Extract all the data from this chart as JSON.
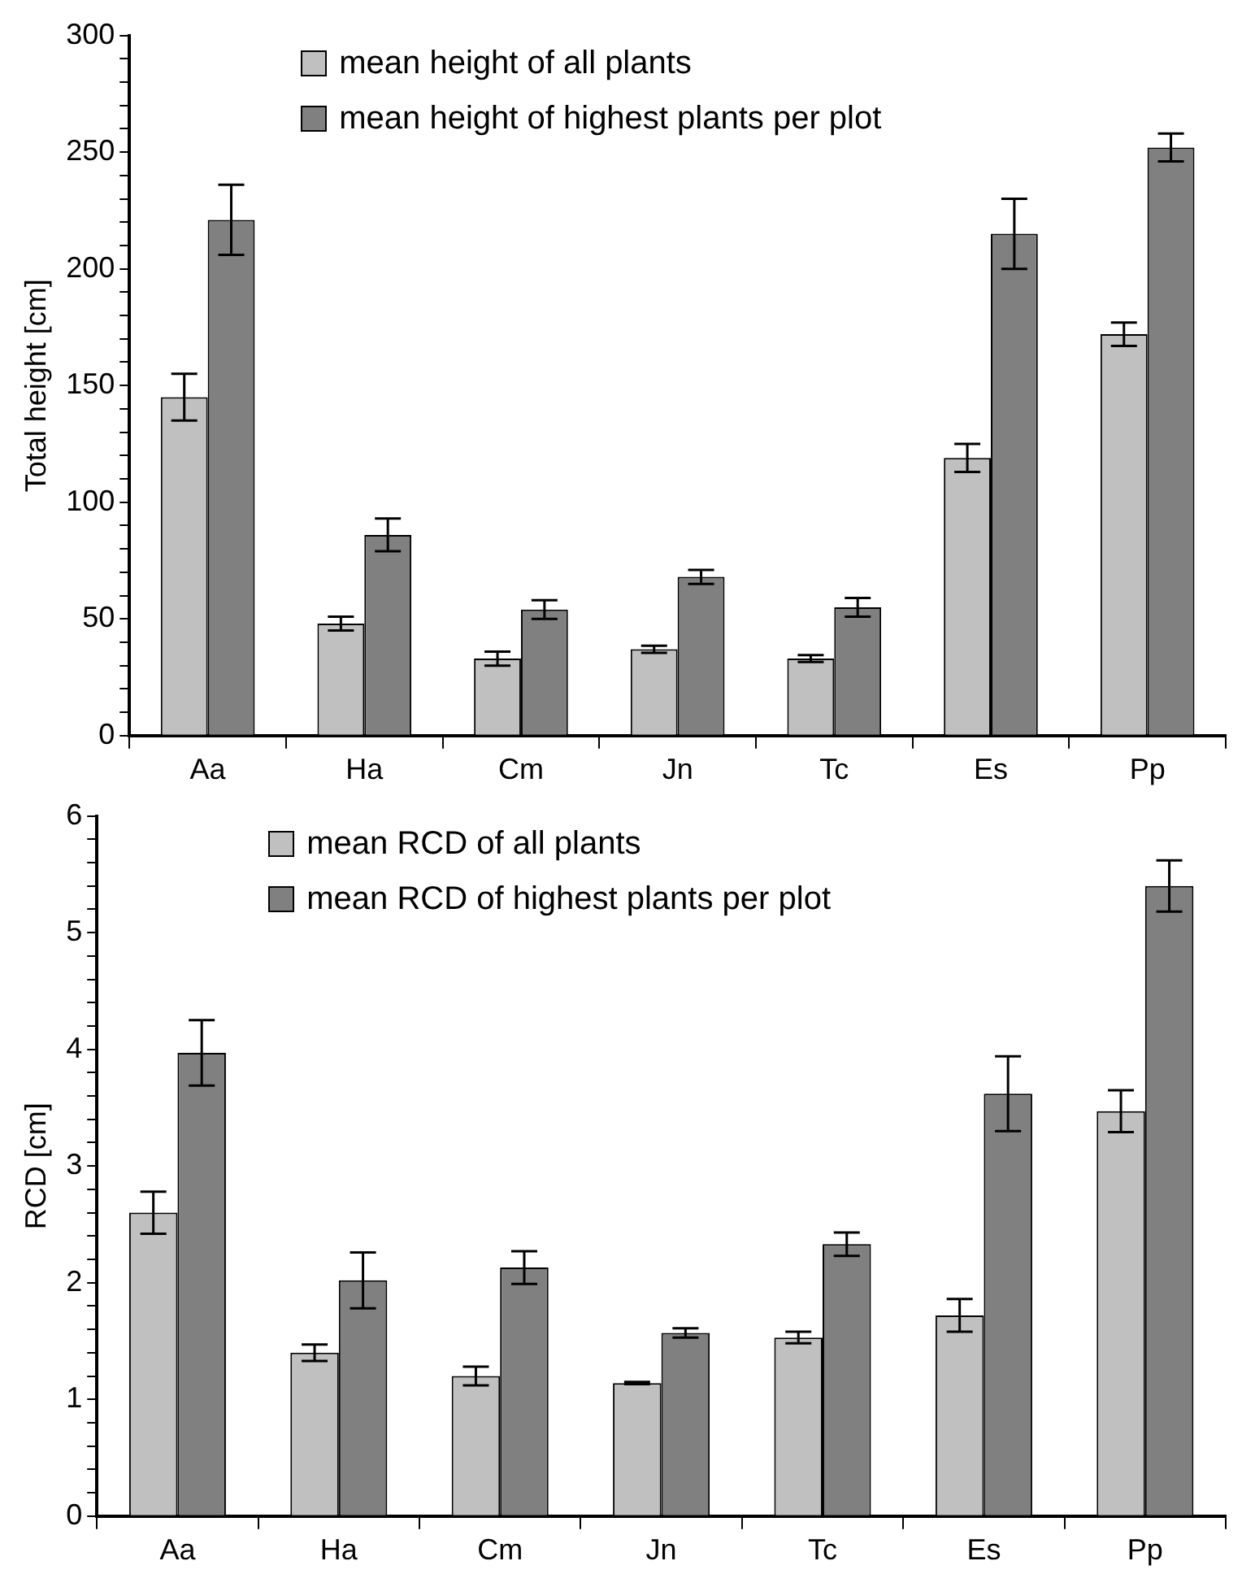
{
  "chart_data": [
    {
      "type": "bar",
      "ylabel": "Total height [cm]",
      "categories": [
        "Aa",
        "Ha",
        "Cm",
        "Jn",
        "Tc",
        "Es",
        "Pp"
      ],
      "series": [
        {
          "name": "mean height of all plants",
          "color": "#c0c0c0",
          "values": [
            145,
            48,
            33,
            37,
            33,
            119,
            172
          ],
          "errors": [
            10,
            3,
            3,
            1.5,
            1.5,
            6,
            5
          ]
        },
        {
          "name": "mean height of highest plants per plot",
          "color": "#808080",
          "values": [
            221,
            86,
            54,
            68,
            55,
            215,
            252
          ],
          "errors": [
            15,
            7,
            4,
            3,
            4,
            15,
            6
          ]
        }
      ],
      "ylim": [
        0,
        300
      ],
      "yticks": [
        0,
        {
          "value": 10,
          "label": null
        },
        {
          "value": 20,
          "label": null
        },
        {
          "value": 30,
          "label": null
        },
        {
          "value": 40,
          "label": null
        },
        50,
        {
          "value": 60,
          "label": null
        },
        {
          "value": 70,
          "label": null
        },
        {
          "value": 80,
          "label": null
        },
        {
          "value": 90,
          "label": null
        },
        100,
        {
          "value": 110,
          "label": null
        },
        {
          "value": 120,
          "label": null
        },
        {
          "value": 130,
          "label": null
        },
        {
          "value": 140,
          "label": null
        },
        150,
        {
          "value": 160,
          "label": null
        },
        {
          "value": 170,
          "label": null
        },
        {
          "value": 180,
          "label": null
        },
        {
          "value": 190,
          "label": null
        },
        200,
        {
          "value": 210,
          "label": null
        },
        {
          "value": 220,
          "label": null
        },
        {
          "value": 230,
          "label": null
        },
        {
          "value": 240,
          "label": null
        },
        250,
        {
          "value": 260,
          "label": null
        },
        {
          "value": 270,
          "label": null
        },
        {
          "value": 280,
          "label": null
        },
        {
          "value": 290,
          "label": null
        },
        300
      ],
      "grid": false,
      "legend": "top left"
    },
    {
      "type": "bar",
      "ylabel": "RCD [cm]",
      "categories": [
        "Aa",
        "Ha",
        "Cm",
        "Jn",
        "Tc",
        "Es",
        "Pp"
      ],
      "series": [
        {
          "name": "mean RCD of all plants",
          "color": "#c0c0c0",
          "values": [
            2.6,
            1.4,
            1.2,
            1.14,
            1.53,
            1.72,
            3.47
          ],
          "errors": [
            0.18,
            0.07,
            0.08,
            0.01,
            0.05,
            0.14,
            0.18
          ]
        },
        {
          "name": "mean RCD of highest plants per plot",
          "color": "#808080",
          "values": [
            3.97,
            2.02,
            2.13,
            1.57,
            2.33,
            3.62,
            5.4
          ],
          "errors": [
            0.28,
            0.24,
            0.14,
            0.04,
            0.1,
            0.32,
            0.22
          ]
        }
      ],
      "ylim": [
        0,
        6
      ],
      "yticks": [
        0,
        {
          "value": 0.2,
          "label": null
        },
        {
          "value": 0.4,
          "label": null
        },
        {
          "value": 0.6,
          "label": null
        },
        {
          "value": 0.8,
          "label": null
        },
        1,
        {
          "value": 1.2,
          "label": null
        },
        {
          "value": 1.4,
          "label": null
        },
        {
          "value": 1.6,
          "label": null
        },
        {
          "value": 1.8,
          "label": null
        },
        2,
        {
          "value": 2.2,
          "label": null
        },
        {
          "value": 2.4,
          "label": null
        },
        {
          "value": 2.6,
          "label": null
        },
        {
          "value": 2.8,
          "label": null
        },
        3,
        {
          "value": 3.2,
          "label": null
        },
        {
          "value": 3.4,
          "label": null
        },
        {
          "value": 3.6,
          "label": null
        },
        {
          "value": 3.8,
          "label": null
        },
        4,
        {
          "value": 4.2,
          "label": null
        },
        {
          "value": 4.4,
          "label": null
        },
        {
          "value": 4.6,
          "label": null
        },
        {
          "value": 4.8,
          "label": null
        },
        5,
        {
          "value": 5.2,
          "label": null
        },
        {
          "value": 5.4,
          "label": null
        },
        {
          "value": 5.6,
          "label": null
        },
        {
          "value": 5.8,
          "label": null
        },
        6
      ],
      "grid": false,
      "legend": "top left"
    }
  ]
}
